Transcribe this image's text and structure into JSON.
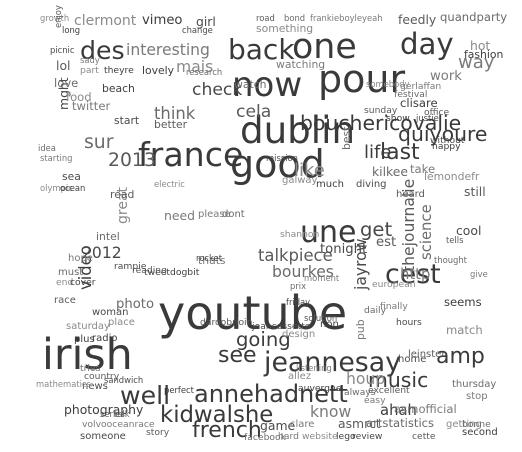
{
  "chart_data": {
    "type": "word_cloud",
    "words": [
      {
        "text": "youtube",
        "weight": 1.0
      },
      {
        "text": "irish",
        "weight": 0.92
      },
      {
        "text": "pour",
        "weight": 0.8
      },
      {
        "text": "good",
        "weight": 0.8
      },
      {
        "text": "dublin",
        "weight": 0.78
      },
      {
        "text": "one",
        "weight": 0.72
      },
      {
        "text": "now",
        "weight": 0.7
      },
      {
        "text": "france",
        "weight": 0.68
      },
      {
        "text": "day",
        "weight": 0.58
      },
      {
        "text": "back",
        "weight": 0.55
      },
      {
        "text": "une",
        "weight": 0.6
      },
      {
        "text": "des",
        "weight": 0.48
      },
      {
        "text": "cest",
        "weight": 0.52
      },
      {
        "text": "jeannesay",
        "weight": 0.52
      },
      {
        "text": "well",
        "weight": 0.48
      },
      {
        "text": "annehadnett",
        "weight": 0.45
      },
      {
        "text": "kidwalshe",
        "weight": 0.42
      },
      {
        "text": "french",
        "weight": 0.4
      },
      {
        "text": "bouchericovalie",
        "weight": 0.36
      },
      {
        "text": "quiyoure",
        "weight": 0.36
      },
      {
        "text": "last",
        "weight": 0.4
      },
      {
        "text": "see",
        "weight": 0.4
      },
      {
        "text": "amp",
        "weight": 0.4
      },
      {
        "text": "music",
        "weight": 0.36
      },
      {
        "text": "going",
        "weight": 0.34
      },
      {
        "text": "get",
        "weight": 0.34
      },
      {
        "text": "2013",
        "weight": 0.32
      },
      {
        "text": "sur",
        "weight": 0.32
      },
      {
        "text": "way",
        "weight": 0.3
      },
      {
        "text": "like",
        "weight": 0.3
      },
      {
        "text": "life",
        "weight": 0.3
      },
      {
        "text": "check",
        "weight": 0.28
      },
      {
        "text": "cela",
        "weight": 0.28
      },
      {
        "text": "think",
        "weight": 0.26
      },
      {
        "text": "interesting",
        "weight": 0.24
      },
      {
        "text": "mais",
        "weight": 0.24
      },
      {
        "text": "video",
        "weight": 0.26
      },
      {
        "text": "2012",
        "weight": 0.24
      },
      {
        "text": "talkpiece",
        "weight": 0.26
      },
      {
        "text": "bourkes",
        "weight": 0.24
      },
      {
        "text": "know",
        "weight": 0.24
      },
      {
        "text": "houp",
        "weight": 0.24
      },
      {
        "text": "ahah",
        "weight": 0.22
      },
      {
        "text": "jayrow",
        "weight": 0.24
      },
      {
        "text": "thejournalie",
        "weight": 0.24
      },
      {
        "text": "science",
        "weight": 0.22
      },
      {
        "text": "http",
        "weight": 0.22
      },
      {
        "text": "clermont",
        "weight": 0.2
      },
      {
        "text": "vimeo",
        "weight": 0.18
      },
      {
        "text": "girl",
        "weight": 0.16
      },
      {
        "text": "feedly",
        "weight": 0.16
      },
      {
        "text": "quandparty",
        "weight": 0.14
      },
      {
        "text": "work",
        "weight": 0.18
      },
      {
        "text": "hot",
        "weight": 0.16
      },
      {
        "text": "fashion",
        "weight": 0.12
      },
      {
        "text": "tonight",
        "weight": 0.18
      },
      {
        "text": "est",
        "weight": 0.18
      },
      {
        "text": "photo",
        "weight": 0.18
      },
      {
        "text": "need",
        "weight": 0.16
      },
      {
        "text": "great",
        "weight": 0.2
      },
      {
        "text": "photography",
        "weight": 0.16
      },
      {
        "text": "game",
        "weight": 0.16
      },
      {
        "text": "asmrct",
        "weight": 0.16
      },
      {
        "text": "artstatistics",
        "weight": 0.14
      },
      {
        "text": "asmofficial",
        "weight": 0.14
      },
      {
        "text": "match",
        "weight": 0.14
      },
      {
        "text": "seems",
        "weight": 0.14
      },
      {
        "text": "cool",
        "weight": 0.16
      },
      {
        "text": "still",
        "weight": 0.16
      },
      {
        "text": "kilkee",
        "weight": 0.16
      },
      {
        "text": "take",
        "weight": 0.14
      },
      {
        "text": "lemondefr",
        "weight": 0.12
      },
      {
        "text": "clisare",
        "weight": 0.14
      },
      {
        "text": "mght",
        "weight": 0.16
      },
      {
        "text": "lol",
        "weight": 0.16
      },
      {
        "text": "love",
        "weight": 0.14
      },
      {
        "text": "twitter",
        "weight": 0.14
      },
      {
        "text": "food",
        "weight": 0.14
      },
      {
        "text": "beach",
        "weight": 0.12
      },
      {
        "text": "start",
        "weight": 0.12
      },
      {
        "text": "better",
        "weight": 0.12
      },
      {
        "text": "watch",
        "weight": 0.12
      },
      {
        "text": "watching",
        "weight": 0.12
      },
      {
        "text": "something",
        "weight": 0.12
      },
      {
        "text": "lovely",
        "weight": 0.12
      },
      {
        "text": "sea",
        "weight": 0.12
      },
      {
        "text": "read",
        "weight": 0.12
      },
      {
        "text": "intel",
        "weight": 0.12
      },
      {
        "text": "thats",
        "weight": 0.12
      },
      {
        "text": "galway",
        "weight": 0.1
      },
      {
        "text": "much",
        "weight": 0.1
      },
      {
        "text": "diving",
        "weight": 0.1
      },
      {
        "text": "heard",
        "weight": 0.1
      },
      {
        "text": "best",
        "weight": 0.12
      },
      {
        "text": "pub",
        "weight": 0.12
      },
      {
        "text": "saturday",
        "weight": 0.1
      },
      {
        "text": "radio",
        "weight": 0.1
      },
      {
        "text": "home",
        "weight": 0.1
      },
      {
        "text": "leinster",
        "weight": 0.1
      },
      {
        "text": "thursday",
        "weight": 0.1
      },
      {
        "text": "stop",
        "weight": 0.1
      },
      {
        "text": "getting",
        "weight": 0.1
      },
      {
        "text": "second",
        "weight": 0.1
      },
      {
        "text": "someone",
        "weight": 0.1
      },
      {
        "text": "story",
        "weight": 0.08
      },
      {
        "text": "facebook",
        "weight": 0.08
      },
      {
        "text": "hard",
        "weight": 0.08
      },
      {
        "text": "website",
        "weight": 0.08
      },
      {
        "text": "lego",
        "weight": 0.08
      },
      {
        "text": "review",
        "weight": 0.08
      },
      {
        "text": "cette",
        "weight": 0.08
      },
      {
        "text": "bonne",
        "weight": 0.08
      },
      {
        "text": "clare",
        "weight": 0.1
      },
      {
        "text": "place",
        "weight": 0.1
      },
      {
        "text": "plus",
        "weight": 0.1
      },
      {
        "text": "woman",
        "weight": 0.1
      },
      {
        "text": "race",
        "weight": 0.1
      },
      {
        "text": "must",
        "weight": 0.1
      },
      {
        "text": "hope",
        "weight": 0.1
      },
      {
        "text": "end",
        "weight": 0.08
      },
      {
        "text": "cover",
        "weight": 0.08
      },
      {
        "text": "news",
        "weight": 0.1
      },
      {
        "text": "country",
        "weight": 0.08
      },
      {
        "text": "tries",
        "weight": 0.08
      },
      {
        "text": "volvooceanrace",
        "weight": 0.08
      },
      {
        "text": "allez",
        "weight": 0.1
      },
      {
        "text": "auvergne",
        "weight": 0.08
      },
      {
        "text": "hours",
        "weight": 0.08
      },
      {
        "text": "excellent",
        "weight": 0.08
      },
      {
        "text": "always",
        "weight": 0.08
      },
      {
        "text": "easy",
        "weight": 0.08
      },
      {
        "text": "design",
        "weight": 0.1
      },
      {
        "text": "non",
        "weight": 0.1
      },
      {
        "text": "jeancassette",
        "weight": 0.08
      },
      {
        "text": "daroobrioin",
        "weight": 0.08
      },
      {
        "text": "daily",
        "weight": 0.08
      },
      {
        "text": "finally",
        "weight": 0.08
      },
      {
        "text": "european",
        "weight": 0.08
      },
      {
        "text": "tweetdogbit",
        "weight": 0.08
      },
      {
        "text": "rampie",
        "weight": 0.08
      },
      {
        "text": "reading",
        "weight": 0.08
      },
      {
        "text": "dont",
        "weight": 0.1
      },
      {
        "text": "please",
        "weight": 0.1
      },
      {
        "text": "shannon",
        "weight": 0.08
      },
      {
        "text": "happy",
        "weight": 0.08
      },
      {
        "text": "without",
        "weight": 0.08
      },
      {
        "text": "office",
        "weight": 0.08
      },
      {
        "text": "festival",
        "weight": 0.08
      },
      {
        "text": "gerlaffan",
        "weight": 0.08
      },
      {
        "text": "somebody",
        "weight": 0.06
      },
      {
        "text": "show",
        "weight": 0.08
      },
      {
        "text": "justie",
        "weight": 0.06
      },
      {
        "text": "sunday",
        "weight": 0.08
      },
      {
        "text": "research",
        "weight": 0.06
      },
      {
        "text": "sady",
        "weight": 0.06
      },
      {
        "text": "part",
        "weight": 0.08
      },
      {
        "text": "theyre",
        "weight": 0.08
      },
      {
        "text": "change",
        "weight": 0.06
      },
      {
        "text": "road",
        "weight": 0.06
      },
      {
        "text": "bond",
        "weight": 0.06
      },
      {
        "text": "frankieboyleyeah",
        "weight": 0.06
      },
      {
        "text": "growth",
        "weight": 0.06
      },
      {
        "text": "long",
        "weight": 0.06
      },
      {
        "text": "picnic",
        "weight": 0.06
      },
      {
        "text": "enjoy",
        "weight": 0.06
      },
      {
        "text": "idea",
        "weight": 0.06
      },
      {
        "text": "starting",
        "weight": 0.06
      },
      {
        "text": "olympic",
        "weight": 0.06
      },
      {
        "text": "ocean",
        "weight": 0.06
      },
      {
        "text": "mission",
        "weight": 0.06
      },
      {
        "text": "tells",
        "weight": 0.06
      },
      {
        "text": "thought",
        "weight": 0.06
      },
      {
        "text": "give",
        "weight": 0.06
      },
      {
        "text": "mathematics",
        "weight": 0.06
      },
      {
        "text": "perfect",
        "weight": 0.06
      },
      {
        "text": "sandwich",
        "weight": 0.06
      },
      {
        "text": "series",
        "weight": 0.06
      },
      {
        "text": "talk",
        "weight": 0.06
      },
      {
        "text": "listening",
        "weight": 0.06
      },
      {
        "text": "electric",
        "weight": 0.06
      },
      {
        "text": "rocket",
        "weight": 0.06
      },
      {
        "text": "friday",
        "weight": 0.06
      },
      {
        "text": "solution",
        "weight": 0.06
      },
      {
        "text": "prix",
        "weight": 0.06
      },
      {
        "text": "moment",
        "weight": 0.06
      }
    ]
  }
}
